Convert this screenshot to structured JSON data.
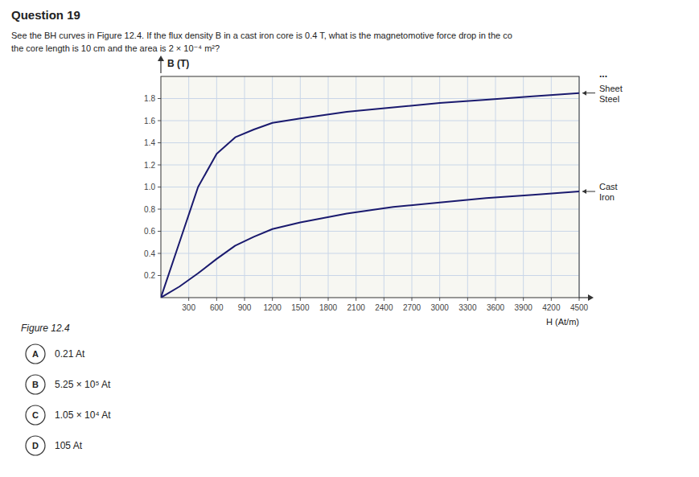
{
  "chart_data": {
    "type": "line",
    "title": "Question 19",
    "annotations": [
      "See the BH curves in Figure 12.4. If the flux density B in a cast iron core is 0.4 T, what is the magnetomotive force drop in the co",
      "the core length is 10 cm and the area is 2 × 10⁻⁴ m²?",
      "Figure 12.4",
      "..."
    ],
    "x_label": "H (At/m)",
    "y_label": "B (T)",
    "x": [
      0,
      200,
      400,
      600,
      800,
      1000,
      1200,
      1500,
      2000,
      2500,
      3000,
      3500,
      4000,
      4500
    ],
    "series": [
      {
        "name": "Sheet\nSteel",
        "color": "#1a1a6e",
        "values": [
          0,
          0.5,
          1.0,
          1.3,
          1.45,
          1.52,
          1.58,
          1.62,
          1.68,
          1.72,
          1.76,
          1.79,
          1.82,
          1.85
        ]
      },
      {
        "name": "Cast\nIron",
        "color": "#1a1a6e",
        "values": [
          0,
          0.1,
          0.22,
          0.35,
          0.47,
          0.55,
          0.62,
          0.68,
          0.76,
          0.82,
          0.86,
          0.9,
          0.93,
          0.96
        ]
      }
    ],
    "xlim": [
      0,
      4500
    ],
    "ylim": [
      0,
      2.0
    ],
    "xticks": [
      300,
      600,
      900,
      1200,
      1500,
      1800,
      2100,
      2400,
      2700,
      3000,
      3300,
      3600,
      3900,
      4200,
      4500
    ],
    "yticks": [
      0.2,
      0.4,
      0.6,
      0.8,
      {
        "value": 1.0,
        "label": "1.0"
      },
      1.2,
      1.4,
      1.6,
      1.8
    ],
    "grid": true,
    "answers": [
      {
        "label": "A",
        "text": "0.21 At"
      },
      {
        "label": "B",
        "text": "5.25 × 10⁵ At"
      },
      {
        "label": "C",
        "text": "1.05 × 10⁴ At"
      },
      {
        "label": "D",
        "text": "105 At"
      }
    ]
  }
}
